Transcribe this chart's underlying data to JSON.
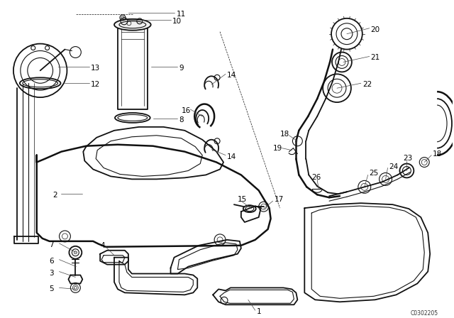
{
  "bg_color": "#ffffff",
  "line_color": "#111111",
  "diagram_code": "C0302205",
  "figsize": [
    6.4,
    4.48
  ],
  "dpi": 100
}
